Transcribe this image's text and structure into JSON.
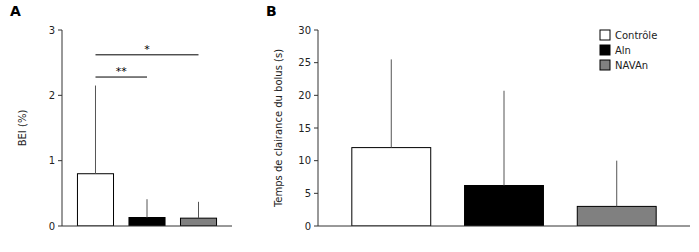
{
  "chart_data": [
    {
      "type": "bar",
      "title": "A",
      "ylabel": "BEI (%)",
      "categories": [
        null,
        null,
        null
      ],
      "values": [
        0.8,
        0.13,
        0.12
      ],
      "errors": [
        1.35,
        0.28,
        0.25
      ],
      "colors": [
        "#ffffff",
        "#000000",
        "#808080"
      ],
      "ylim": [
        0,
        3
      ],
      "yticks": [
        0,
        1,
        2,
        3
      ],
      "grid": false,
      "tick_labels": "y",
      "annotations": [
        {
          "x1": 1,
          "x2": 2,
          "y": 2.28,
          "label": "**"
        },
        {
          "x1": 1,
          "x2": 3,
          "y": 2.62,
          "label": "*"
        }
      ]
    },
    {
      "type": "bar",
      "title": "B",
      "ylabel": "Temps de clairance du bolus (s)",
      "categories": [
        "Contrôle",
        "Aln",
        "NAVAn"
      ],
      "values": [
        12,
        6.2,
        3.0
      ],
      "errors": [
        13.5,
        14.5,
        7.0
      ],
      "colors": [
        "#ffffff",
        "#000000",
        "#808080"
      ],
      "ylim": [
        0,
        30
      ],
      "yticks": [
        0,
        5,
        10,
        15,
        20,
        25,
        30
      ],
      "grid": false,
      "tick_labels": "y",
      "legend": "upper right"
    }
  ]
}
